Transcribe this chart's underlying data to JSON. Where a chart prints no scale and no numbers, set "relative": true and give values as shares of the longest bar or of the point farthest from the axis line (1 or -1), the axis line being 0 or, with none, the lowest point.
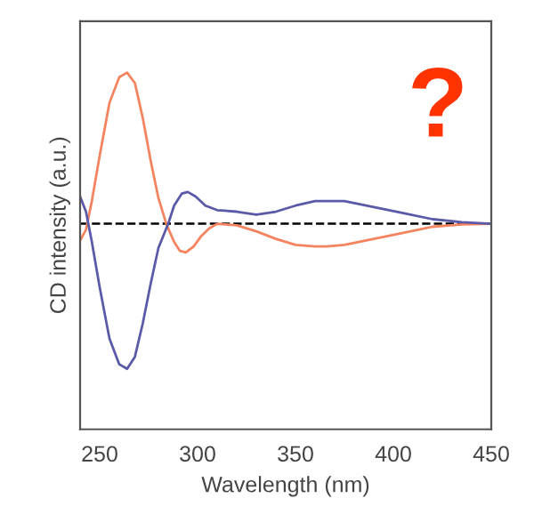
{
  "chart_data": {
    "type": "line",
    "relative": true,
    "xlabel": "Wavelength (nm)",
    "ylabel": "CD intensity (a.u.)",
    "xlim": [
      240,
      450
    ],
    "xticks": [
      250,
      300,
      350,
      400,
      450
    ],
    "tick_labels": "x",
    "grid": false,
    "legend": false,
    "marker": "none",
    "line_style": "solid",
    "annotations": [
      "?"
    ],
    "ref_lines": [
      {
        "axis": "y",
        "value": 0,
        "color": "#000000",
        "line_style": "dashed"
      }
    ],
    "series": [
      {
        "color": "#f4845f",
        "x": [
          240,
          243,
          246,
          250,
          255,
          260,
          264,
          268,
          272,
          276,
          280,
          284,
          288,
          291,
          294,
          298,
          302,
          306,
          310,
          320,
          330,
          340,
          350,
          360,
          366,
          375,
          390,
          405,
          420,
          435,
          450
        ],
        "values": [
          -0.11,
          -0.04,
          0.15,
          0.45,
          0.8,
          0.97,
          1.0,
          0.93,
          0.7,
          0.42,
          0.17,
          0.0,
          -0.12,
          -0.18,
          -0.19,
          -0.15,
          -0.08,
          -0.03,
          0.0,
          -0.01,
          -0.05,
          -0.1,
          -0.14,
          -0.15,
          -0.15,
          -0.14,
          -0.1,
          -0.06,
          -0.02,
          -0.005,
          0.0
        ]
      },
      {
        "color": "#5a5aa8",
        "x": [
          240,
          243,
          246,
          250,
          255,
          260,
          264,
          268,
          272,
          276,
          280,
          285,
          288,
          292,
          295,
          299,
          304,
          310,
          320,
          330,
          340,
          350,
          360,
          366,
          375,
          390,
          405,
          420,
          435,
          450
        ],
        "values": [
          0.18,
          0.08,
          -0.12,
          -0.42,
          -0.76,
          -0.93,
          -0.96,
          -0.88,
          -0.66,
          -0.4,
          -0.16,
          0.0,
          0.12,
          0.2,
          0.21,
          0.18,
          0.12,
          0.09,
          0.08,
          0.06,
          0.08,
          0.12,
          0.15,
          0.15,
          0.15,
          0.11,
          0.07,
          0.03,
          0.01,
          0.0
        ]
      }
    ]
  }
}
